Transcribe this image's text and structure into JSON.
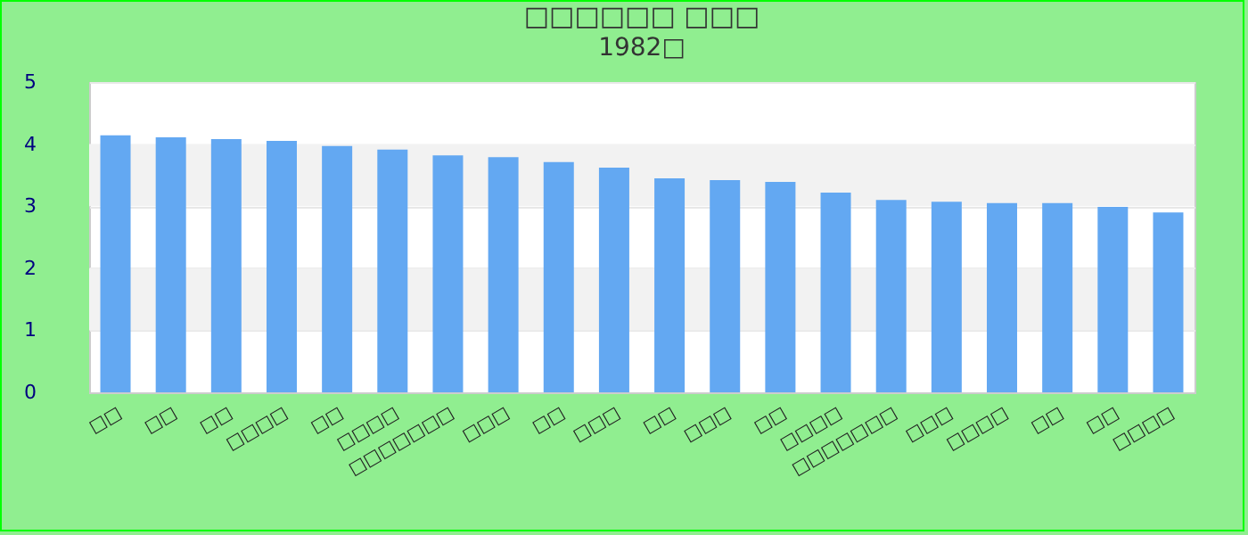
{
  "chart_data": {
    "type": "bar",
    "title": "□□□□□□ □□□",
    "subtitle": "1982□",
    "categories": [
      "□□",
      "□□",
      "□□",
      "□□□□",
      "□□",
      "□□□□",
      "□□□□□□□",
      "□□□",
      "□□",
      "□□□",
      "□□",
      "□□□",
      "□□",
      "□□□□",
      "□□□□□□□",
      "□□□",
      "□□□□",
      "□□",
      "□□",
      "□□□□"
    ],
    "values": [
      4.14,
      4.11,
      4.08,
      4.05,
      3.97,
      3.91,
      3.82,
      3.79,
      3.71,
      3.62,
      3.45,
      3.42,
      3.39,
      3.22,
      3.1,
      3.07,
      3.05,
      3.05,
      2.99,
      2.9
    ],
    "color": "#63a8f2",
    "ylim": [
      0,
      5
    ],
    "yticks": [
      0,
      1,
      2,
      3,
      4,
      5
    ],
    "grid": true
  }
}
